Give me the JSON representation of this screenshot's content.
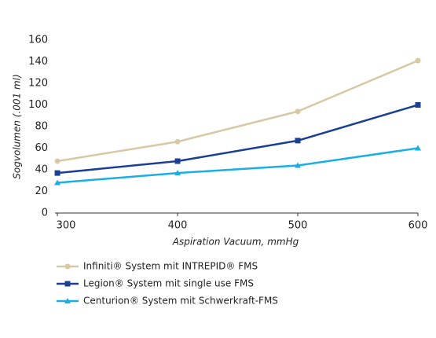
{
  "chart_data": {
    "type": "line",
    "x_label": "Aspiration Vacuum, mmHg",
    "y_label": "Sogvolumen (.001 ml)",
    "x": [
      300,
      400,
      500,
      600
    ],
    "xlim": [
      298,
      600
    ],
    "xticks": [
      300,
      400,
      500,
      600
    ],
    "ylim": [
      0,
      160
    ],
    "yticks": [
      0,
      20,
      40,
      60,
      80,
      100,
      120,
      140,
      160
    ],
    "grid": false,
    "series": [
      {
        "name": "Infiniti® System mit INTREPID® FMS",
        "color": "#d8c8a6",
        "marker": "circle",
        "values": [
          48,
          66,
          94,
          141
        ]
      },
      {
        "name": "Legion® System mit single use FMS",
        "color": "#1b3f93",
        "marker": "square",
        "values": [
          37,
          48,
          67,
          100
        ]
      },
      {
        "name": "Centurion® System mit Schwerkraft-FMS",
        "color": "#1aaee5",
        "marker": "triangle",
        "values": [
          28,
          37,
          44,
          60
        ]
      }
    ]
  }
}
